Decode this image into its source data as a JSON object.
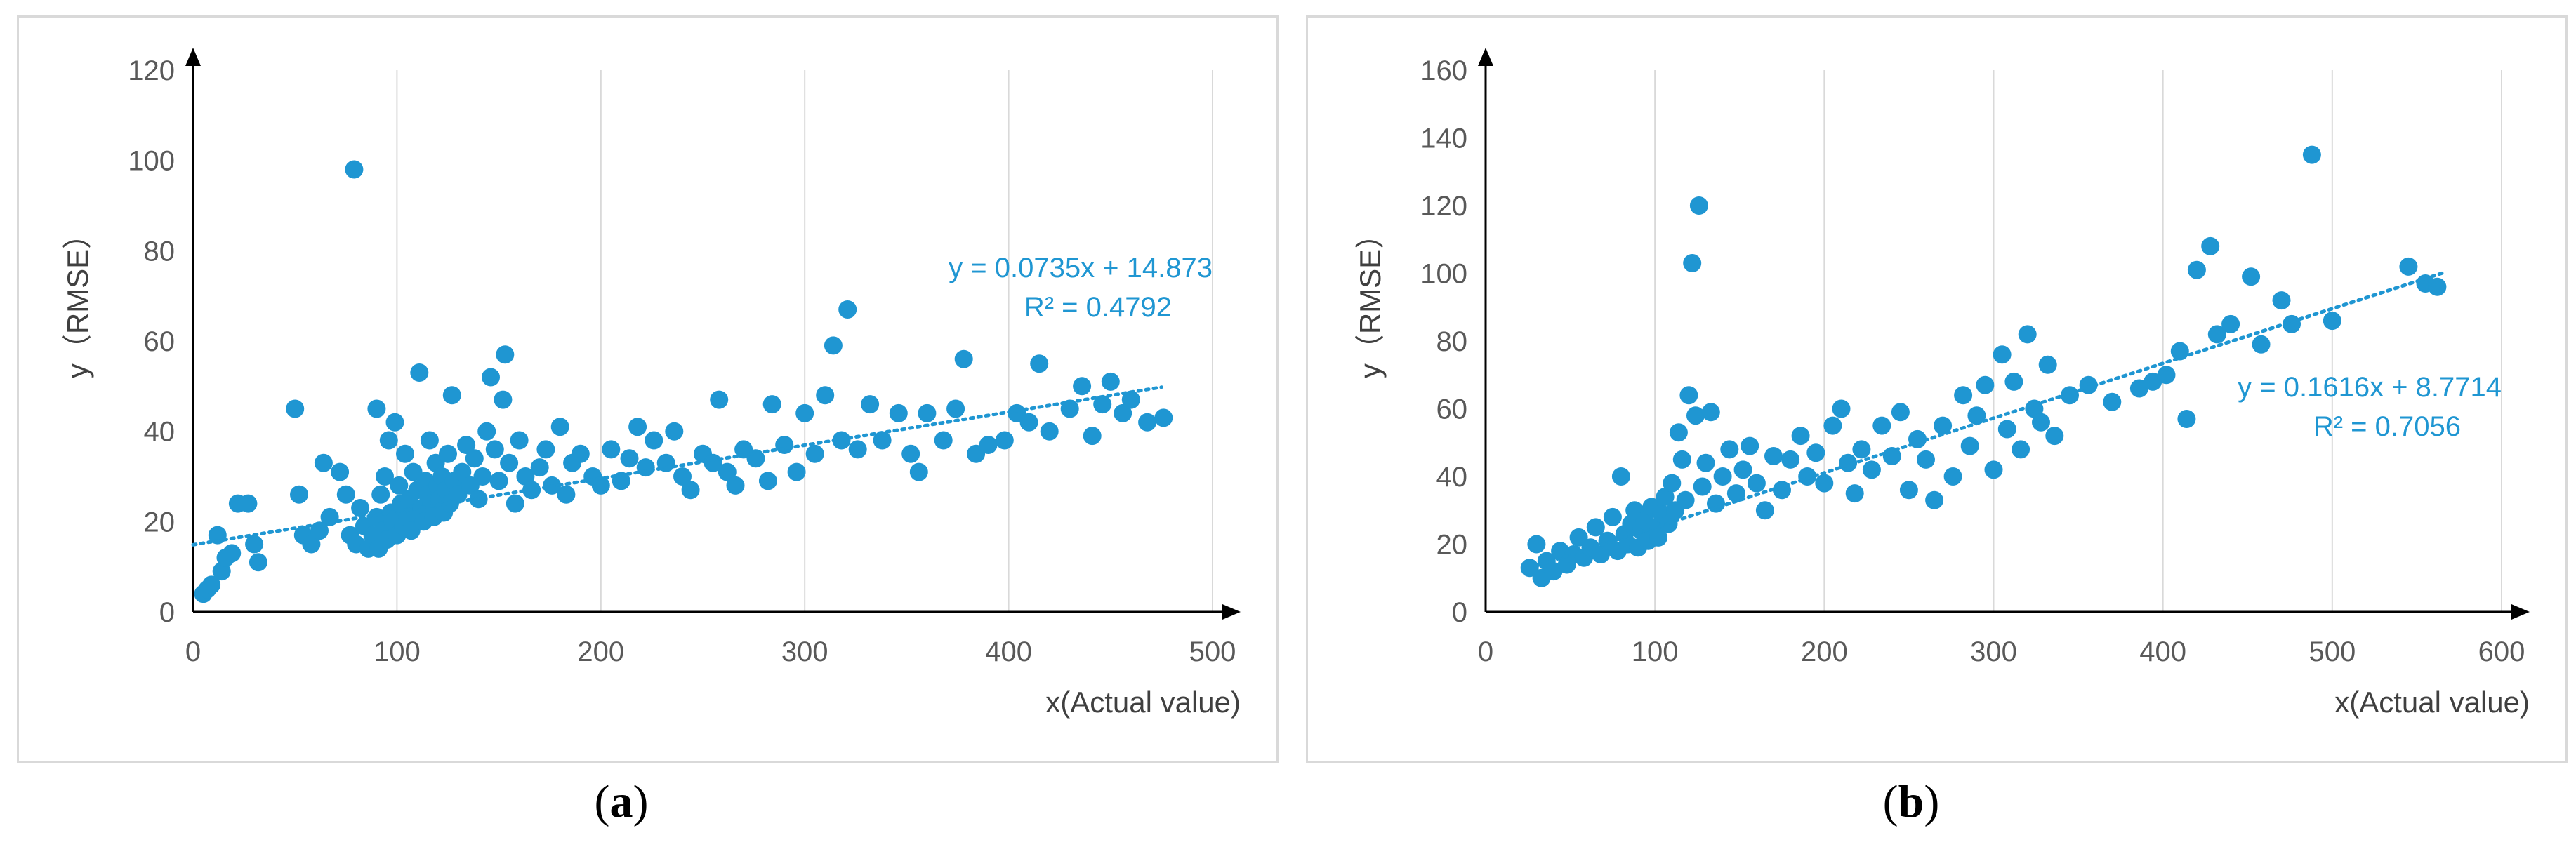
{
  "chart_data": [
    {
      "id": "a",
      "type": "scatter",
      "caption_letter": "a",
      "xlabel": "x(Actual value)",
      "ylabel": "y（RMSE）",
      "xlim": [
        0,
        500
      ],
      "ylim": [
        0,
        120
      ],
      "xticks": [
        0,
        100,
        200,
        300,
        400,
        500
      ],
      "yticks": [
        0,
        20,
        40,
        60,
        80,
        100,
        120
      ],
      "grid": true,
      "point_color": "#1f96d2",
      "trendline": {
        "slope": 0.0735,
        "intercept": 14.873,
        "x_range": [
          0,
          475
        ],
        "equation": "y = 0.0735x + 14.873",
        "r2": "R² = 0.4792"
      },
      "points": [
        [
          5,
          4
        ],
        [
          7,
          5
        ],
        [
          9,
          6
        ],
        [
          12,
          17
        ],
        [
          14,
          9
        ],
        [
          16,
          12
        ],
        [
          19,
          13
        ],
        [
          22,
          24
        ],
        [
          27,
          24
        ],
        [
          30,
          15
        ],
        [
          32,
          11
        ],
        [
          50,
          45
        ],
        [
          52,
          26
        ],
        [
          54,
          17
        ],
        [
          58,
          15
        ],
        [
          62,
          18
        ],
        [
          64,
          33
        ],
        [
          67,
          21
        ],
        [
          72,
          31
        ],
        [
          75,
          26
        ],
        [
          77,
          17
        ],
        [
          79,
          98
        ],
        [
          80,
          15
        ],
        [
          82,
          23
        ],
        [
          84,
          19
        ],
        [
          86,
          14
        ],
        [
          88,
          17
        ],
        [
          90,
          21
        ],
        [
          90,
          45
        ],
        [
          91,
          14
        ],
        [
          92,
          26
        ],
        [
          93,
          18
        ],
        [
          94,
          30
        ],
        [
          95,
          16
        ],
        [
          96,
          38
        ],
        [
          97,
          22
        ],
        [
          98,
          20
        ],
        [
          99,
          42
        ],
        [
          100,
          17
        ],
        [
          101,
          28
        ],
        [
          102,
          24
        ],
        [
          103,
          19
        ],
        [
          104,
          35
        ],
        [
          105,
          21
        ],
        [
          106,
          25
        ],
        [
          107,
          18
        ],
        [
          108,
          31
        ],
        [
          109,
          22
        ],
        [
          110,
          27
        ],
        [
          111,
          53
        ],
        [
          112,
          23
        ],
        [
          113,
          20
        ],
        [
          114,
          29
        ],
        [
          115,
          26
        ],
        [
          116,
          38
        ],
        [
          117,
          24
        ],
        [
          118,
          21
        ],
        [
          119,
          33
        ],
        [
          120,
          28
        ],
        [
          121,
          25
        ],
        [
          122,
          30
        ],
        [
          123,
          22
        ],
        [
          124,
          27
        ],
        [
          125,
          35
        ],
        [
          126,
          24
        ],
        [
          127,
          48
        ],
        [
          128,
          29
        ],
        [
          130,
          26
        ],
        [
          132,
          31
        ],
        [
          134,
          37
        ],
        [
          136,
          28
        ],
        [
          138,
          34
        ],
        [
          140,
          25
        ],
        [
          142,
          30
        ],
        [
          144,
          40
        ],
        [
          146,
          52
        ],
        [
          148,
          36
        ],
        [
          150,
          29
        ],
        [
          152,
          47
        ],
        [
          153,
          57
        ],
        [
          155,
          33
        ],
        [
          158,
          24
        ],
        [
          160,
          38
        ],
        [
          163,
          30
        ],
        [
          166,
          27
        ],
        [
          170,
          32
        ],
        [
          173,
          36
        ],
        [
          176,
          28
        ],
        [
          180,
          41
        ],
        [
          183,
          26
        ],
        [
          186,
          33
        ],
        [
          190,
          35
        ],
        [
          196,
          30
        ],
        [
          200,
          28
        ],
        [
          205,
          36
        ],
        [
          210,
          29
        ],
        [
          214,
          34
        ],
        [
          218,
          41
        ],
        [
          222,
          32
        ],
        [
          226,
          38
        ],
        [
          232,
          33
        ],
        [
          236,
          40
        ],
        [
          240,
          30
        ],
        [
          244,
          27
        ],
        [
          250,
          35
        ],
        [
          255,
          33
        ],
        [
          258,
          47
        ],
        [
          262,
          31
        ],
        [
          266,
          28
        ],
        [
          270,
          36
        ],
        [
          276,
          34
        ],
        [
          282,
          29
        ],
        [
          284,
          46
        ],
        [
          290,
          37
        ],
        [
          296,
          31
        ],
        [
          300,
          44
        ],
        [
          305,
          35
        ],
        [
          310,
          48
        ],
        [
          314,
          59
        ],
        [
          318,
          38
        ],
        [
          321,
          67
        ],
        [
          326,
          36
        ],
        [
          332,
          46
        ],
        [
          338,
          38
        ],
        [
          346,
          44
        ],
        [
          352,
          35
        ],
        [
          356,
          31
        ],
        [
          360,
          44
        ],
        [
          368,
          38
        ],
        [
          374,
          45
        ],
        [
          378,
          56
        ],
        [
          384,
          35
        ],
        [
          390,
          37
        ],
        [
          398,
          38
        ],
        [
          404,
          44
        ],
        [
          410,
          42
        ],
        [
          415,
          55
        ],
        [
          420,
          40
        ],
        [
          430,
          45
        ],
        [
          436,
          50
        ],
        [
          441,
          39
        ],
        [
          446,
          46
        ],
        [
          450,
          51
        ],
        [
          456,
          44
        ],
        [
          460,
          47
        ],
        [
          468,
          42
        ],
        [
          476,
          43
        ]
      ]
    },
    {
      "id": "b",
      "type": "scatter",
      "caption_letter": "b",
      "xlabel": "x(Actual value)",
      "ylabel": "y（RMSE）",
      "xlim": [
        0,
        600
      ],
      "ylim": [
        0,
        160
      ],
      "xticks": [
        0,
        100,
        200,
        300,
        400,
        500,
        600
      ],
      "yticks": [
        0,
        20,
        40,
        60,
        80,
        100,
        120,
        140,
        160
      ],
      "grid": true,
      "point_color": "#1f96d2",
      "trendline": {
        "slope": 0.1616,
        "intercept": 8.7714,
        "x_range": [
          25,
          565
        ],
        "equation": "y = 0.1616x + 8.7714",
        "r2": "R² = 0.7056"
      },
      "points": [
        [
          26,
          13
        ],
        [
          30,
          20
        ],
        [
          33,
          10
        ],
        [
          36,
          15
        ],
        [
          40,
          12
        ],
        [
          44,
          18
        ],
        [
          48,
          14
        ],
        [
          52,
          17
        ],
        [
          55,
          22
        ],
        [
          58,
          16
        ],
        [
          62,
          19
        ],
        [
          65,
          25
        ],
        [
          68,
          17
        ],
        [
          72,
          21
        ],
        [
          75,
          28
        ],
        [
          78,
          18
        ],
        [
          80,
          40
        ],
        [
          82,
          23
        ],
        [
          84,
          20
        ],
        [
          86,
          26
        ],
        [
          88,
          30
        ],
        [
          90,
          19
        ],
        [
          92,
          24
        ],
        [
          94,
          27
        ],
        [
          96,
          21
        ],
        [
          98,
          31
        ],
        [
          100,
          25
        ],
        [
          102,
          22
        ],
        [
          104,
          29
        ],
        [
          106,
          34
        ],
        [
          108,
          26
        ],
        [
          110,
          38
        ],
        [
          112,
          30
        ],
        [
          114,
          53
        ],
        [
          116,
          45
        ],
        [
          118,
          33
        ],
        [
          120,
          64
        ],
        [
          122,
          103
        ],
        [
          124,
          58
        ],
        [
          126,
          120
        ],
        [
          128,
          37
        ],
        [
          130,
          44
        ],
        [
          133,
          59
        ],
        [
          136,
          32
        ],
        [
          140,
          40
        ],
        [
          144,
          48
        ],
        [
          148,
          35
        ],
        [
          152,
          42
        ],
        [
          156,
          49
        ],
        [
          160,
          38
        ],
        [
          165,
          30
        ],
        [
          170,
          46
        ],
        [
          175,
          36
        ],
        [
          180,
          45
        ],
        [
          186,
          52
        ],
        [
          190,
          40
        ],
        [
          195,
          47
        ],
        [
          200,
          38
        ],
        [
          205,
          55
        ],
        [
          210,
          60
        ],
        [
          214,
          44
        ],
        [
          218,
          35
        ],
        [
          222,
          48
        ],
        [
          228,
          42
        ],
        [
          234,
          55
        ],
        [
          240,
          46
        ],
        [
          245,
          59
        ],
        [
          250,
          36
        ],
        [
          255,
          51
        ],
        [
          260,
          45
        ],
        [
          265,
          33
        ],
        [
          270,
          55
        ],
        [
          276,
          40
        ],
        [
          282,
          64
        ],
        [
          286,
          49
        ],
        [
          290,
          58
        ],
        [
          295,
          67
        ],
        [
          300,
          42
        ],
        [
          305,
          76
        ],
        [
          308,
          54
        ],
        [
          312,
          68
        ],
        [
          316,
          48
        ],
        [
          320,
          82
        ],
        [
          324,
          60
        ],
        [
          328,
          56
        ],
        [
          332,
          73
        ],
        [
          336,
          52
        ],
        [
          345,
          64
        ],
        [
          356,
          67
        ],
        [
          370,
          62
        ],
        [
          386,
          66
        ],
        [
          394,
          68
        ],
        [
          402,
          70
        ],
        [
          410,
          77
        ],
        [
          414,
          57
        ],
        [
          420,
          101
        ],
        [
          428,
          108
        ],
        [
          432,
          82
        ],
        [
          440,
          85
        ],
        [
          452,
          99
        ],
        [
          458,
          79
        ],
        [
          470,
          92
        ],
        [
          476,
          85
        ],
        [
          488,
          135
        ],
        [
          500,
          86
        ],
        [
          545,
          102
        ],
        [
          555,
          97
        ],
        [
          562,
          96
        ]
      ]
    }
  ]
}
